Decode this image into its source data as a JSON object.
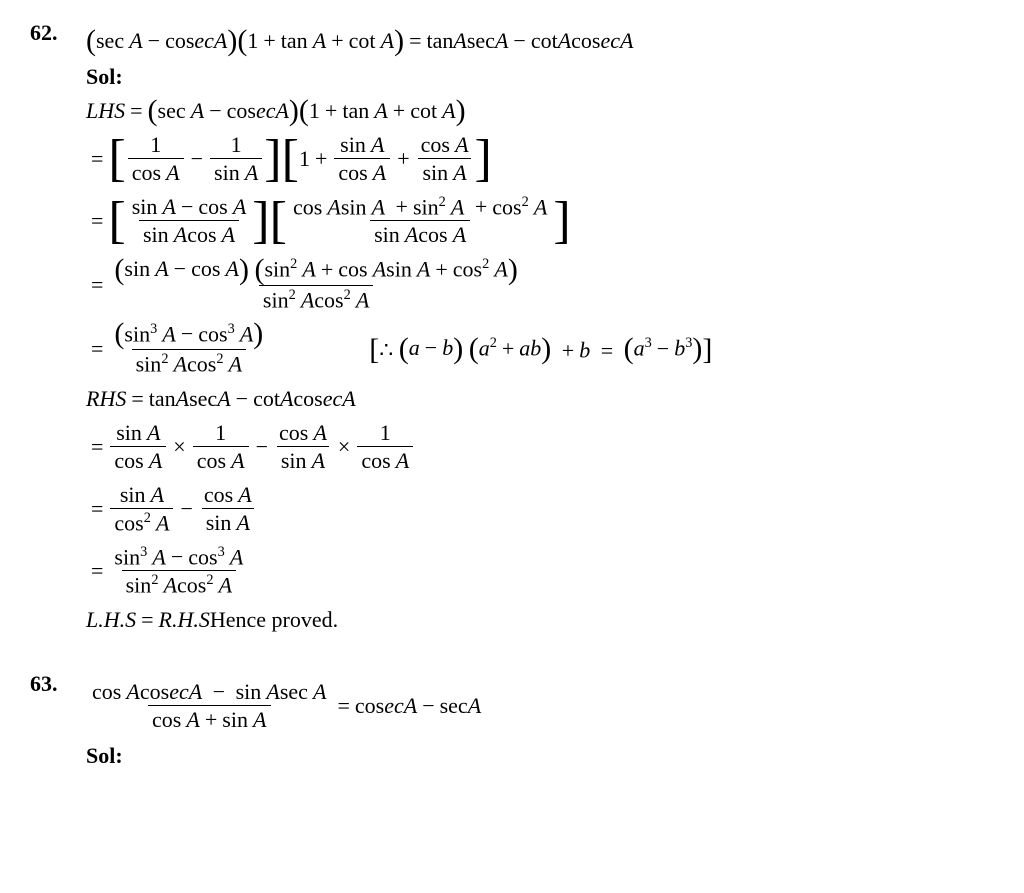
{
  "p62": {
    "num": "62.",
    "statement": {
      "lhs_p1": "sec",
      "lhs_p2": "cos",
      "lhs_p3": "ecA",
      "lhs_p4": "1",
      "lhs_p5": "tan",
      "lhs_p6": "cot",
      "rhs_p1": "tan",
      "rhs_p2": "sec",
      "rhs_p3": "cot",
      "rhs_p4": "cos",
      "rhs_p5": "ecA"
    },
    "sol": "Sol:",
    "l1": {
      "lhs": "LHS",
      "eq": "="
    },
    "l2": {
      "n1": "1",
      "d1a": "cos",
      "n2": "1",
      "d2a": "sin",
      "b1": "1",
      "fn1a": "sin",
      "fd1a": "cos",
      "fn2a": "cos",
      "fd2a": "sin"
    },
    "l3": {
      "na": "sin",
      "nb": "cos",
      "da": "sin",
      "db": "cos",
      "rn1": "cos",
      "rn2": "sin",
      "rn3": "sin",
      "rn4": "cos",
      "rd1": "sin",
      "rd2": "cos",
      "sq": "2"
    },
    "l4": {
      "n1": "sin",
      "n2": "cos",
      "n3": "sin",
      "n4": "cos",
      "n5": "sin",
      "n6": "cos",
      "d1": "sin",
      "d2": "cos",
      "sq": "2"
    },
    "l5": {
      "n1": "sin",
      "n2": "cos",
      "d1": "sin",
      "d2": "cos",
      "cube": "3",
      "sq": "2",
      "note_therefore": "∴",
      "note_a": "a",
      "note_b": "b",
      "note_ab": "ab"
    },
    "l6": {
      "rhs": "RHS",
      "t1": "tan",
      "t2": "sec",
      "t3": "cot",
      "t4": "cos",
      "t5": "ecA"
    },
    "l7": {
      "n1": "sin",
      "d1": "cos",
      "n2": "1",
      "d2": "cos",
      "n3": "cos",
      "d3": "sin",
      "n4": "1",
      "d4": "cos"
    },
    "l8": {
      "n1": "sin",
      "d1": "cos",
      "n2": "cos",
      "d2": "sin",
      "sq": "2"
    },
    "l9": {
      "n1": "sin",
      "n2": "cos",
      "d1": "sin",
      "d2": "cos",
      "cube": "3",
      "sq": "2"
    },
    "l10": {
      "lhs": "L.H.S",
      "rhs": "R.H.S",
      "txt": " Hence proved."
    }
  },
  "p63": {
    "num": "63.",
    "n1": "cos",
    "n2": "cos",
    "n3": "ecA",
    "n4": "sin",
    "n5": "sec",
    "d1": "cos",
    "d2": "sin",
    "r1": "cos",
    "r2": "ecA",
    "r3": "sec",
    "sol": "Sol:"
  },
  "A": "A",
  "plus": "+",
  "minus": "−",
  "times": "×",
  "eq": "="
}
